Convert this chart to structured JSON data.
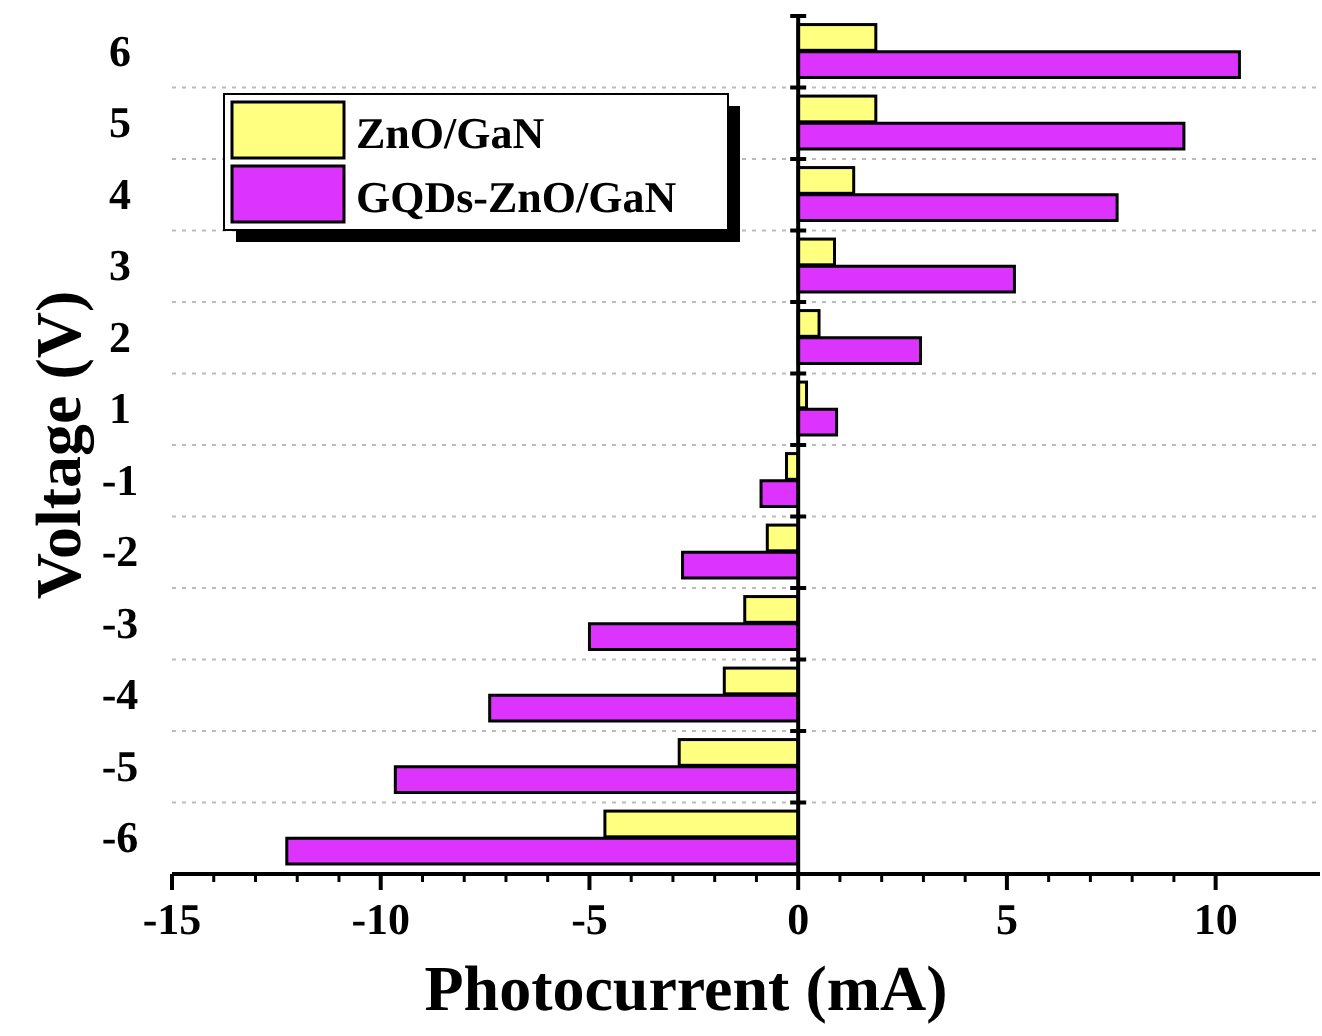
{
  "chart_data": {
    "type": "bar",
    "orientation": "horizontal",
    "xlabel": "Photocurrent (mA)",
    "ylabel": "Voltage (V)",
    "categories": [
      "6",
      "5",
      "4",
      "3",
      "2",
      "1",
      "-1",
      "-2",
      "-3",
      "-4",
      "-5",
      "-6"
    ],
    "series": [
      {
        "name": "ZnO/GaN",
        "color": "#ffff80",
        "values": [
          1.86,
          1.86,
          1.33,
          0.87,
          0.5,
          0.2,
          -0.28,
          -0.74,
          -1.28,
          -1.77,
          -2.85,
          -4.63
        ]
      },
      {
        "name": "GQDs-ZnO/GaN",
        "color": "#dd33ff",
        "values": [
          10.57,
          9.24,
          7.64,
          5.18,
          2.93,
          0.92,
          -0.89,
          -2.77,
          -5.0,
          -7.39,
          -9.65,
          -12.25
        ]
      }
    ],
    "xlim": [
      -15,
      12.5
    ],
    "xticks": [
      -15,
      -10,
      -5,
      0,
      5,
      10
    ],
    "grid": "y",
    "legend": "top left"
  }
}
